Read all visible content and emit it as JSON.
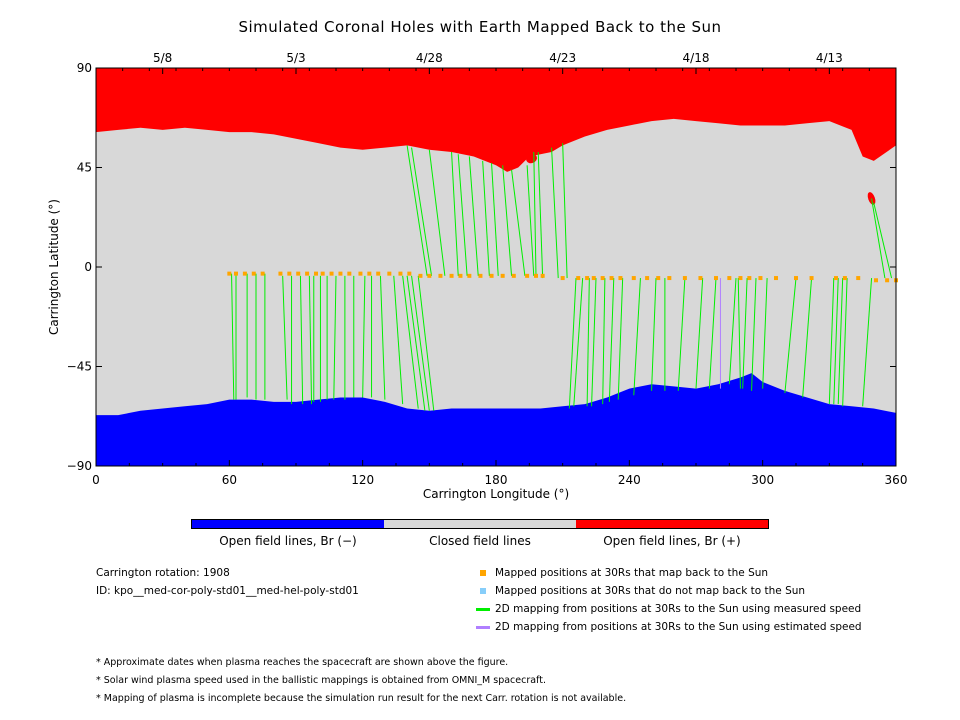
{
  "chart_data": {
    "type": "map",
    "title": "Simulated Coronal Holes with Earth Mapped Back to the Sun",
    "xlabel": "Carrington Longitude (°)",
    "ylabel": "Carrington Latitude (°)",
    "xlim": [
      0,
      360
    ],
    "ylim": [
      -90,
      90
    ],
    "x_ticks": [
      0,
      60,
      120,
      180,
      240,
      300,
      360
    ],
    "y_ticks": [
      90,
      45,
      0,
      -45,
      -90
    ],
    "y_tick_labels": [
      "90",
      "45",
      "0",
      "−45",
      "−90"
    ],
    "top_axis_dates": [
      {
        "lon": 30,
        "label": "5/8"
      },
      {
        "lon": 90,
        "label": "5/3"
      },
      {
        "lon": 150,
        "label": "4/28"
      },
      {
        "lon": 210,
        "label": "4/23"
      },
      {
        "lon": 270,
        "label": "4/18"
      },
      {
        "lon": 330,
        "label": "4/13"
      }
    ],
    "colors": {
      "open_negative": "#0000ff",
      "closed": "#d8d8d8",
      "open_positive": "#ff0000",
      "mapped": "#ffa500",
      "unmapped": "#87cefa",
      "measured": "#00ee00",
      "estimated": "#b07fff"
    },
    "north_hole_boundary": [
      [
        0,
        61
      ],
      [
        10,
        62
      ],
      [
        20,
        63
      ],
      [
        30,
        62
      ],
      [
        40,
        63
      ],
      [
        50,
        62
      ],
      [
        60,
        61
      ],
      [
        70,
        61
      ],
      [
        80,
        60
      ],
      [
        90,
        58
      ],
      [
        100,
        56
      ],
      [
        110,
        54
      ],
      [
        120,
        53
      ],
      [
        130,
        54
      ],
      [
        140,
        55
      ],
      [
        150,
        53
      ],
      [
        160,
        52
      ],
      [
        170,
        50
      ],
      [
        180,
        46
      ],
      [
        185,
        43
      ],
      [
        190,
        45
      ],
      [
        195,
        50
      ],
      [
        205,
        52
      ],
      [
        210,
        55
      ],
      [
        220,
        59
      ],
      [
        230,
        62
      ],
      [
        240,
        64
      ],
      [
        250,
        66
      ],
      [
        260,
        67
      ],
      [
        270,
        66
      ],
      [
        280,
        65
      ],
      [
        290,
        64
      ],
      [
        300,
        64
      ],
      [
        310,
        64
      ],
      [
        320,
        65
      ],
      [
        330,
        66
      ],
      [
        340,
        62
      ],
      [
        345,
        50
      ],
      [
        350,
        48
      ],
      [
        360,
        55
      ]
    ],
    "south_hole_boundary": [
      [
        0,
        -67
      ],
      [
        10,
        -67
      ],
      [
        20,
        -65
      ],
      [
        30,
        -64
      ],
      [
        40,
        -63
      ],
      [
        50,
        -62
      ],
      [
        60,
        -60
      ],
      [
        70,
        -60
      ],
      [
        80,
        -61
      ],
      [
        90,
        -61
      ],
      [
        100,
        -60
      ],
      [
        110,
        -59
      ],
      [
        120,
        -59
      ],
      [
        130,
        -61
      ],
      [
        140,
        -64
      ],
      [
        150,
        -65
      ],
      [
        160,
        -64
      ],
      [
        170,
        -64
      ],
      [
        180,
        -64
      ],
      [
        190,
        -64
      ],
      [
        200,
        -64
      ],
      [
        210,
        -63
      ],
      [
        220,
        -62
      ],
      [
        230,
        -59
      ],
      [
        240,
        -55
      ],
      [
        250,
        -53
      ],
      [
        260,
        -54
      ],
      [
        270,
        -55
      ],
      [
        280,
        -53
      ],
      [
        290,
        -50
      ],
      [
        295,
        -48
      ],
      [
        300,
        -52
      ],
      [
        310,
        -56
      ],
      [
        320,
        -59
      ],
      [
        330,
        -62
      ],
      [
        340,
        -63
      ],
      [
        350,
        -64
      ],
      [
        360,
        -66
      ]
    ],
    "islands": [
      {
        "lon": 196,
        "lat": 49,
        "lon_extent": 5,
        "lat_extent": 4
      },
      {
        "lon": 349,
        "lat": 31,
        "lon_extent": 3,
        "lat_extent": 6
      }
    ],
    "mapping_lines": [
      [
        61,
        -3,
        62,
        -60
      ],
      [
        63,
        -3,
        63,
        -60
      ],
      [
        68,
        -3,
        68,
        -59
      ],
      [
        72,
        -3,
        72,
        -60
      ],
      [
        76,
        -3,
        76,
        -60
      ],
      [
        84,
        -4,
        86,
        -60
      ],
      [
        88,
        -4,
        88,
        -62
      ],
      [
        92,
        -4,
        93,
        -62
      ],
      [
        96,
        -4,
        97,
        -62
      ],
      [
        98,
        -4,
        98,
        -61
      ],
      [
        101,
        -4,
        101,
        -61
      ],
      [
        104,
        -4,
        104,
        -60
      ],
      [
        108,
        -4,
        107,
        -60
      ],
      [
        112,
        -4,
        112,
        -60
      ],
      [
        116,
        -4,
        116,
        -59
      ],
      [
        121,
        -4,
        120,
        -59
      ],
      [
        124,
        -4,
        124,
        -59
      ],
      [
        128,
        -4,
        130,
        -60
      ],
      [
        134,
        -4,
        138,
        -62
      ],
      [
        138,
        -4,
        145,
        -64
      ],
      [
        140,
        -4,
        148,
        -65
      ],
      [
        142,
        -4,
        150,
        -65
      ],
      [
        145,
        -4,
        152,
        -65
      ],
      [
        149,
        -4,
        140,
        55
      ],
      [
        151,
        -4,
        142,
        54
      ],
      [
        157,
        -4,
        150,
        53
      ],
      [
        163,
        -4,
        160,
        52
      ],
      [
        167,
        -4,
        163,
        51
      ],
      [
        172,
        -4,
        168,
        50
      ],
      [
        177,
        -4,
        174,
        48
      ],
      [
        181,
        -4,
        178,
        47
      ],
      [
        187,
        -4,
        183,
        46
      ],
      [
        193,
        -4,
        187,
        44
      ],
      [
        197,
        -4,
        194,
        46
      ],
      [
        198,
        -4,
        197,
        52
      ],
      [
        201,
        -5,
        199,
        52
      ],
      [
        208,
        -5,
        205,
        54
      ],
      [
        212,
        -5,
        210,
        56
      ],
      [
        216,
        -5,
        213,
        -64
      ],
      [
        219,
        -5,
        215,
        -63
      ],
      [
        222,
        -5,
        221,
        -63
      ],
      [
        225,
        -5,
        223,
        -63
      ],
      [
        229,
        -5,
        228,
        -62
      ],
      [
        233,
        -5,
        231,
        -61
      ],
      [
        237,
        -5,
        235,
        -60
      ],
      [
        245,
        -5,
        242,
        -58
      ],
      [
        252,
        -5,
        250,
        -56
      ],
      [
        256,
        -5,
        256,
        -56
      ],
      [
        265,
        -5,
        262,
        -56
      ],
      [
        273,
        -5,
        270,
        -55
      ],
      [
        279,
        -5,
        276,
        -55
      ],
      [
        288,
        -5,
        285,
        -53
      ],
      [
        289,
        -5,
        290,
        -55
      ],
      [
        293,
        -5,
        291,
        -55
      ],
      [
        297,
        -5,
        295,
        -56
      ],
      [
        302,
        -5,
        300,
        -55
      ],
      [
        315,
        -5,
        310,
        -57
      ],
      [
        322,
        -5,
        318,
        -59
      ],
      [
        332,
        -5,
        330,
        -62
      ],
      [
        334,
        -5,
        332,
        -62
      ],
      [
        336,
        -5,
        334,
        -62
      ],
      [
        338,
        -5,
        336,
        -63
      ],
      [
        349,
        -5,
        345,
        -63
      ],
      [
        355,
        -5,
        349,
        31
      ],
      [
        358,
        -5,
        350,
        29
      ]
    ],
    "estimated_lines": [
      [
        281,
        -5,
        281,
        -55
      ]
    ],
    "mapped_points": [
      [
        60,
        -3
      ],
      [
        63,
        -3
      ],
      [
        67,
        -3
      ],
      [
        71,
        -3
      ],
      [
        75,
        -3
      ],
      [
        83,
        -3
      ],
      [
        87,
        -3
      ],
      [
        91,
        -3
      ],
      [
        95,
        -3
      ],
      [
        99,
        -3
      ],
      [
        102,
        -3
      ],
      [
        106,
        -3
      ],
      [
        110,
        -3
      ],
      [
        114,
        -3
      ],
      [
        119,
        -3
      ],
      [
        123,
        -3
      ],
      [
        127,
        -3
      ],
      [
        132,
        -3
      ],
      [
        137,
        -3
      ],
      [
        141,
        -3
      ],
      [
        146,
        -4
      ],
      [
        150,
        -4
      ],
      [
        155,
        -4
      ],
      [
        160,
        -4
      ],
      [
        164,
        -4
      ],
      [
        168,
        -4
      ],
      [
        173,
        -4
      ],
      [
        178,
        -4
      ],
      [
        183,
        -4
      ],
      [
        188,
        -4
      ],
      [
        194,
        -4
      ],
      [
        198,
        -4
      ],
      [
        201,
        -4
      ],
      [
        210,
        -5
      ],
      [
        217,
        -5
      ],
      [
        221,
        -5
      ],
      [
        224,
        -5
      ],
      [
        228,
        -5
      ],
      [
        232,
        -5
      ],
      [
        236,
        -5
      ],
      [
        242,
        -5
      ],
      [
        248,
        -5
      ],
      [
        253,
        -5
      ],
      [
        258,
        -5
      ],
      [
        265,
        -5
      ],
      [
        272,
        -5
      ],
      [
        279,
        -5
      ],
      [
        285,
        -5
      ],
      [
        290,
        -5
      ],
      [
        294,
        -5
      ],
      [
        299,
        -5
      ],
      [
        306,
        -5
      ],
      [
        315,
        -5
      ],
      [
        322,
        -5
      ],
      [
        333,
        -5
      ],
      [
        337,
        -5
      ],
      [
        343,
        -5
      ],
      [
        351,
        -6
      ],
      [
        356,
        -6
      ],
      [
        360,
        -6
      ]
    ]
  },
  "colorbar": {
    "labels": [
      "Open field lines, Br (−)",
      "Closed field lines",
      "Open field lines, Br (+)"
    ]
  },
  "info": {
    "rotation": "Carrington rotation: 1908",
    "id": "ID: kpo__med-cor-poly-std01__med-hel-poly-std01"
  },
  "legend": [
    {
      "label": "Mapped positions at 30Rs that map back to the Sun"
    },
    {
      "label": "Mapped positions at 30Rs that do not map back to the Sun"
    },
    {
      "label": "2D mapping from positions at 30Rs to the Sun using measured speed"
    },
    {
      "label": "2D mapping from positions at 30Rs to the Sun using estimated speed"
    }
  ],
  "notes": [
    "* Approximate dates when plasma reaches the spacecraft are shown above the figure.",
    "* Solar wind plasma speed used in the ballistic mappings is obtained from OMNI_M spacecraft.",
    "* Mapping of plasma is incomplete because the simulation run result for the next Carr. rotation is not available."
  ]
}
